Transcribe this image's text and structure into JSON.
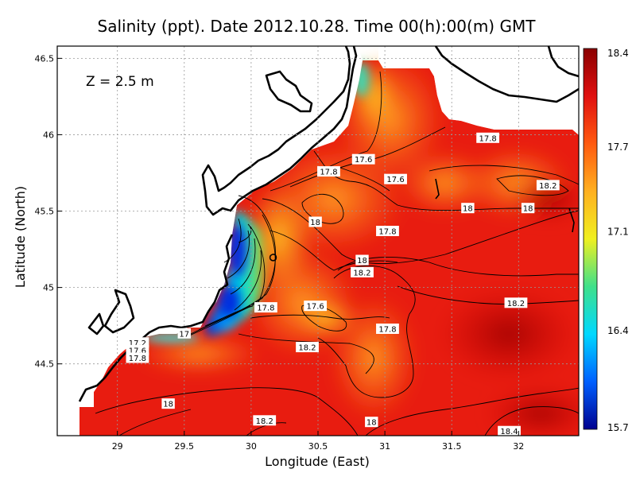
{
  "chart_data": {
    "type": "heatmap",
    "title": "Salinity (ppt). Date 2012.10.28. Time 00(h):00(m) GMT",
    "xlabel": "Longitude (East)",
    "ylabel": "Latitude (North)",
    "xlim": [
      28.55,
      32.45
    ],
    "ylim": [
      44.03,
      46.58
    ],
    "x_ticks": [
      {
        "value": 29,
        "label": "29"
      },
      {
        "value": 29.5,
        "label": "29.5"
      },
      {
        "value": 30,
        "label": "30"
      },
      {
        "value": 30.5,
        "label": "30.5"
      },
      {
        "value": 31,
        "label": "31"
      },
      {
        "value": 31.5,
        "label": "31.5"
      },
      {
        "value": 32,
        "label": "32"
      }
    ],
    "y_ticks": [
      {
        "value": 44.5,
        "label": "44.5"
      },
      {
        "value": 45,
        "label": "45"
      },
      {
        "value": 45.5,
        "label": "45.5"
      },
      {
        "value": 46,
        "label": "46"
      },
      {
        "value": 46.5,
        "label": "46.5"
      }
    ],
    "grid": true,
    "annotation": "Z = 2.5 m",
    "colorbar": {
      "min": 15.7,
      "max": 18.4,
      "labels": [
        {
          "value": 18.4,
          "label": "18.4"
        },
        {
          "value": 17.7,
          "label": "17.7"
        },
        {
          "value": 17.1,
          "label": "17.1"
        },
        {
          "value": 16.4,
          "label": "16.4"
        },
        {
          "value": 15.7,
          "label": "15.7"
        }
      ],
      "colors": [
        "#00008f",
        "#0060ff",
        "#00d8ff",
        "#3fe08a",
        "#f0f020",
        "#ffb020",
        "#ff5a10",
        "#e01010",
        "#8a0000"
      ]
    },
    "contour_labels": [
      {
        "lon": 31.08,
        "lat": 45.71,
        "text": "17.6"
      },
      {
        "lon": 30.84,
        "lat": 45.84,
        "text": "17.6"
      },
      {
        "lon": 30.58,
        "lat": 45.76,
        "text": "17.8"
      },
      {
        "lon": 31.77,
        "lat": 45.98,
        "text": "17.8"
      },
      {
        "lon": 32.22,
        "lat": 45.67,
        "text": "18.2"
      },
      {
        "lon": 30.48,
        "lat": 45.43,
        "text": "18"
      },
      {
        "lon": 31.62,
        "lat": 45.52,
        "text": "18"
      },
      {
        "lon": 32.07,
        "lat": 45.52,
        "text": "18"
      },
      {
        "lon": 31.02,
        "lat": 45.37,
        "text": "17.8"
      },
      {
        "lon": 30.83,
        "lat": 45.18,
        "text": "18"
      },
      {
        "lon": 30.83,
        "lat": 45.1,
        "text": "18.2"
      },
      {
        "lon": 31.98,
        "lat": 44.9,
        "text": "18.2"
      },
      {
        "lon": 30.11,
        "lat": 44.87,
        "text": "17.8"
      },
      {
        "lon": 30.48,
        "lat": 44.88,
        "text": "17.6"
      },
      {
        "lon": 31.02,
        "lat": 44.73,
        "text": "17.8"
      },
      {
        "lon": 30.42,
        "lat": 44.61,
        "text": "18.2"
      },
      {
        "lon": 29.5,
        "lat": 44.7,
        "text": "17"
      },
      {
        "lon": 29.15,
        "lat": 44.64,
        "text": "17.2"
      },
      {
        "lon": 29.15,
        "lat": 44.59,
        "text": "17.6"
      },
      {
        "lon": 29.15,
        "lat": 44.54,
        "text": "17.8"
      },
      {
        "lon": 29.38,
        "lat": 44.24,
        "text": "18"
      },
      {
        "lon": 30.1,
        "lat": 44.13,
        "text": "18.2"
      },
      {
        "lon": 30.9,
        "lat": 44.12,
        "text": "18"
      },
      {
        "lon": 31.93,
        "lat": 44.06,
        "text": "18.4"
      }
    ]
  }
}
